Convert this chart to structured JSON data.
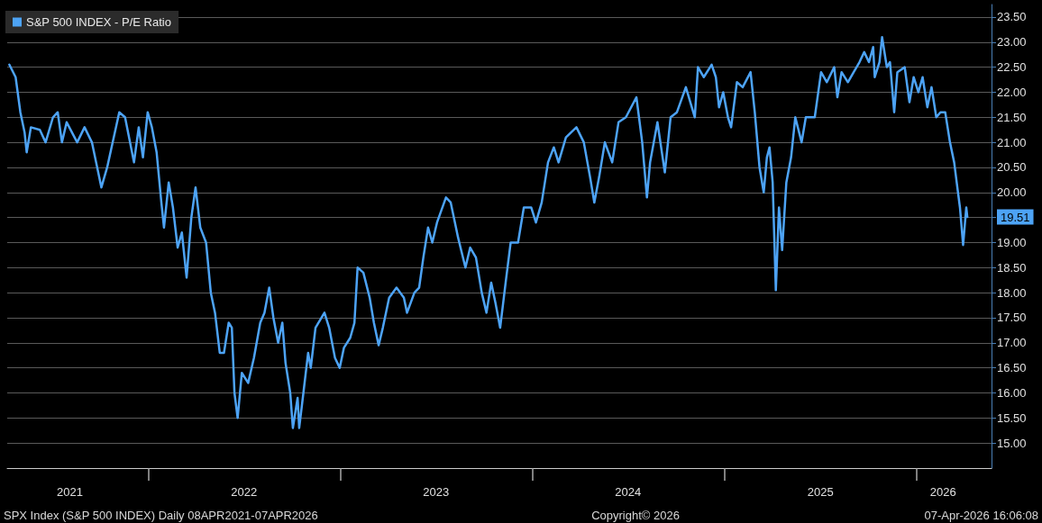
{
  "chart_data": {
    "type": "line",
    "x": [
      "2021-04-12",
      "2021-04-24",
      "2021-05-03",
      "2021-05-11",
      "2021-05-15",
      "2021-05-23",
      "2021-06-09",
      "2021-06-20",
      "2021-07-04",
      "2021-07-13",
      "2021-07-21",
      "2021-07-30",
      "2021-08-19",
      "2021-09-02",
      "2021-09-16",
      "2021-10-04",
      "2021-10-15",
      "2021-11-07",
      "2021-11-18",
      "2021-12-05",
      "2021-12-14",
      "2021-12-22",
      "2021-12-31",
      "2022-01-08",
      "2022-01-17",
      "2022-01-26",
      "2022-01-31",
      "2022-02-09",
      "2022-02-17",
      "2022-02-26",
      "2022-03-06",
      "2022-03-15",
      "2022-03-24",
      "2022-04-01",
      "2022-04-10",
      "2022-04-21",
      "2022-04-30",
      "2022-05-08",
      "2022-05-17",
      "2022-05-25",
      "2022-06-03",
      "2022-06-09",
      "2022-06-14",
      "2022-06-20",
      "2022-06-28",
      "2022-07-10",
      "2022-07-21",
      "2022-08-02",
      "2022-08-10",
      "2022-08-19",
      "2022-08-27",
      "2022-09-05",
      "2022-09-13",
      "2022-09-19",
      "2022-09-28",
      "2022-10-03",
      "2022-10-12",
      "2022-10-15",
      "2022-10-23",
      "2022-11-01",
      "2022-11-06",
      "2022-11-15",
      "2022-12-02",
      "2022-12-11",
      "2022-12-22",
      "2022-12-31",
      "2023-01-08",
      "2023-01-20",
      "2023-01-28",
      "2023-02-03",
      "2023-02-14",
      "2023-02-26",
      "2023-03-06",
      "2023-03-15",
      "2023-03-23",
      "2023-04-04",
      "2023-04-18",
      "2023-05-02",
      "2023-05-08",
      "2023-05-22",
      "2023-05-31",
      "2023-06-08",
      "2023-06-17",
      "2023-06-25",
      "2023-07-04",
      "2023-07-21",
      "2023-07-30",
      "2023-08-13",
      "2023-08-27",
      "2023-09-05",
      "2023-09-16",
      "2023-09-27",
      "2023-10-06",
      "2023-10-15",
      "2023-10-23",
      "2023-11-01",
      "2023-11-12",
      "2023-11-21",
      "2023-12-05",
      "2023-12-16",
      "2023-12-30",
      "2024-01-08",
      "2024-01-19",
      "2024-01-31",
      "2024-02-11",
      "2024-02-20",
      "2024-03-05",
      "2024-03-25",
      "2024-04-08",
      "2024-04-20",
      "2024-04-28",
      "2024-05-07",
      "2024-05-18",
      "2024-06-01",
      "2024-06-13",
      "2024-06-27",
      "2024-07-17",
      "2024-07-28",
      "2024-08-06",
      "2024-08-12",
      "2024-08-26",
      "2024-09-09",
      "2024-09-20",
      "2024-10-02",
      "2024-10-19",
      "2024-11-05",
      "2024-11-11",
      "2024-11-22",
      "2024-12-07",
      "2024-12-15",
      "2024-12-21",
      "2024-12-29",
      "2025-01-07",
      "2025-01-13",
      "2025-01-24",
      "2025-02-04",
      "2025-02-19",
      "2025-02-27",
      "2025-03-08",
      "2025-03-16",
      "2025-03-22",
      "2025-03-27",
      "2025-04-02",
      "2025-04-08",
      "2025-04-14",
      "2025-04-20",
      "2025-04-28",
      "2025-05-07",
      "2025-05-15",
      "2025-05-27",
      "2025-06-04",
      "2025-06-21",
      "2025-07-03",
      "2025-07-14",
      "2025-07-28",
      "2025-08-03",
      "2025-08-11",
      "2025-08-23",
      "2025-09-03",
      "2025-09-14",
      "2025-09-23",
      "2025-10-02",
      "2025-10-10",
      "2025-10-13",
      "2025-10-22",
      "2025-10-27",
      "2025-11-05",
      "2025-11-11",
      "2025-11-19",
      "2025-11-25",
      "2025-12-09",
      "2025-12-18",
      "2025-12-26",
      "2026-01-04",
      "2026-01-12",
      "2026-01-21",
      "2026-01-29",
      "2026-02-07",
      "2026-02-15",
      "2026-02-24",
      "2026-03-05",
      "2026-03-13",
      "2026-03-19",
      "2026-03-24",
      "2026-03-30",
      "2026-04-05",
      "2026-04-07"
    ],
    "series": [
      {
        "name": "S&P 500 INDEX - P/E Ratio",
        "color": "#4da3f5",
        "values": [
          22.55,
          22.3,
          21.6,
          21.2,
          20.8,
          21.3,
          21.25,
          21.0,
          21.5,
          21.6,
          21.0,
          21.4,
          21.0,
          21.3,
          21.0,
          20.1,
          20.5,
          21.6,
          21.5,
          20.6,
          21.3,
          20.7,
          21.6,
          21.3,
          20.8,
          19.8,
          19.3,
          20.2,
          19.7,
          18.9,
          19.2,
          18.3,
          19.5,
          20.1,
          19.3,
          19.0,
          18.0,
          17.6,
          16.8,
          16.8,
          17.4,
          17.3,
          16.0,
          15.5,
          16.4,
          16.2,
          16.7,
          17.4,
          17.6,
          18.1,
          17.5,
          17.0,
          17.4,
          16.6,
          16.0,
          15.3,
          15.9,
          15.3,
          16.0,
          16.8,
          16.5,
          17.3,
          17.6,
          17.3,
          16.7,
          16.5,
          16.9,
          17.1,
          17.4,
          18.5,
          18.4,
          17.9,
          17.4,
          16.95,
          17.3,
          17.9,
          18.1,
          17.9,
          17.6,
          18.0,
          18.1,
          18.7,
          19.3,
          19.0,
          19.4,
          19.9,
          19.8,
          19.1,
          18.5,
          18.9,
          18.7,
          18.0,
          17.6,
          18.2,
          17.8,
          17.3,
          18.25,
          19.0,
          19.0,
          19.7,
          19.7,
          19.4,
          19.8,
          20.6,
          20.9,
          20.6,
          21.1,
          21.3,
          21.0,
          20.3,
          19.8,
          20.3,
          21.0,
          20.6,
          21.4,
          21.5,
          21.9,
          21.0,
          19.9,
          20.6,
          21.4,
          20.4,
          21.5,
          21.6,
          22.1,
          21.5,
          22.5,
          22.3,
          22.55,
          22.3,
          21.7,
          22.0,
          21.5,
          21.3,
          22.2,
          22.1,
          22.4,
          21.6,
          20.5,
          20.0,
          20.7,
          20.9,
          20.2,
          18.05,
          19.7,
          18.85,
          20.2,
          20.7,
          21.5,
          21.0,
          21.5,
          21.5,
          22.4,
          22.2,
          22.5,
          21.9,
          22.4,
          22.2,
          22.4,
          22.6,
          22.8,
          22.6,
          22.9,
          22.3,
          22.6,
          23.1,
          22.5,
          22.6,
          21.6,
          22.4,
          22.5,
          21.8,
          22.3,
          22.0,
          22.3,
          21.7,
          22.1,
          21.5,
          21.6,
          21.6,
          21.0,
          20.6,
          20.1,
          19.7,
          18.95,
          19.7,
          19.51
        ]
      }
    ],
    "xlim": [
      "2021-04-08",
      "2026-05-23"
    ],
    "xticks": [
      {
        "value": "2021-08-05",
        "label": "2021"
      },
      {
        "value": "2022-01-01",
        "label": null
      },
      {
        "value": "2022-07-02",
        "label": "2022"
      },
      {
        "value": "2023-01-01",
        "label": null
      },
      {
        "value": "2023-07-02",
        "label": "2023"
      },
      {
        "value": "2024-01-01",
        "label": null
      },
      {
        "value": "2024-07-01",
        "label": "2024"
      },
      {
        "value": "2025-01-01",
        "label": null
      },
      {
        "value": "2025-07-02",
        "label": "2025"
      },
      {
        "value": "2026-01-01",
        "label": null
      },
      {
        "value": "2026-02-20",
        "label": "2026"
      }
    ],
    "ylim": [
      14.5,
      23.75
    ],
    "yticks": [
      {
        "value": 15,
        "label": "15.00"
      },
      {
        "value": 15.5,
        "label": "15.50"
      },
      {
        "value": 16,
        "label": "16.00"
      },
      {
        "value": 16.5,
        "label": "16.50"
      },
      {
        "value": 17,
        "label": "17.00"
      },
      {
        "value": 17.5,
        "label": "17.50"
      },
      {
        "value": 18,
        "label": "18.00"
      },
      {
        "value": 18.5,
        "label": "18.50"
      },
      {
        "value": 19,
        "label": "19.00"
      },
      {
        "value": 19.5,
        "label": null
      },
      {
        "value": 20,
        "label": "20.00"
      },
      {
        "value": 20.5,
        "label": "20.50"
      },
      {
        "value": 21,
        "label": "21.00"
      },
      {
        "value": 21.5,
        "label": "21.50"
      },
      {
        "value": 22,
        "label": "22.00"
      },
      {
        "value": 22.5,
        "label": "22.50"
      },
      {
        "value": 23,
        "label": "23.00"
      },
      {
        "value": 23.5,
        "label": "23.50"
      }
    ],
    "grid": "y",
    "legend": "top left",
    "marker": "none",
    "line_style": "solid",
    "annotations": [
      {
        "text": "19.51",
        "x": "2026-04-07",
        "y": 19.51
      },
      "SPX Index (S&P 500 INDEX) Daily 08APR2021-07APR2026",
      "Copyright© 2026",
      "07-Apr-2026 16:06:08"
    ]
  }
}
